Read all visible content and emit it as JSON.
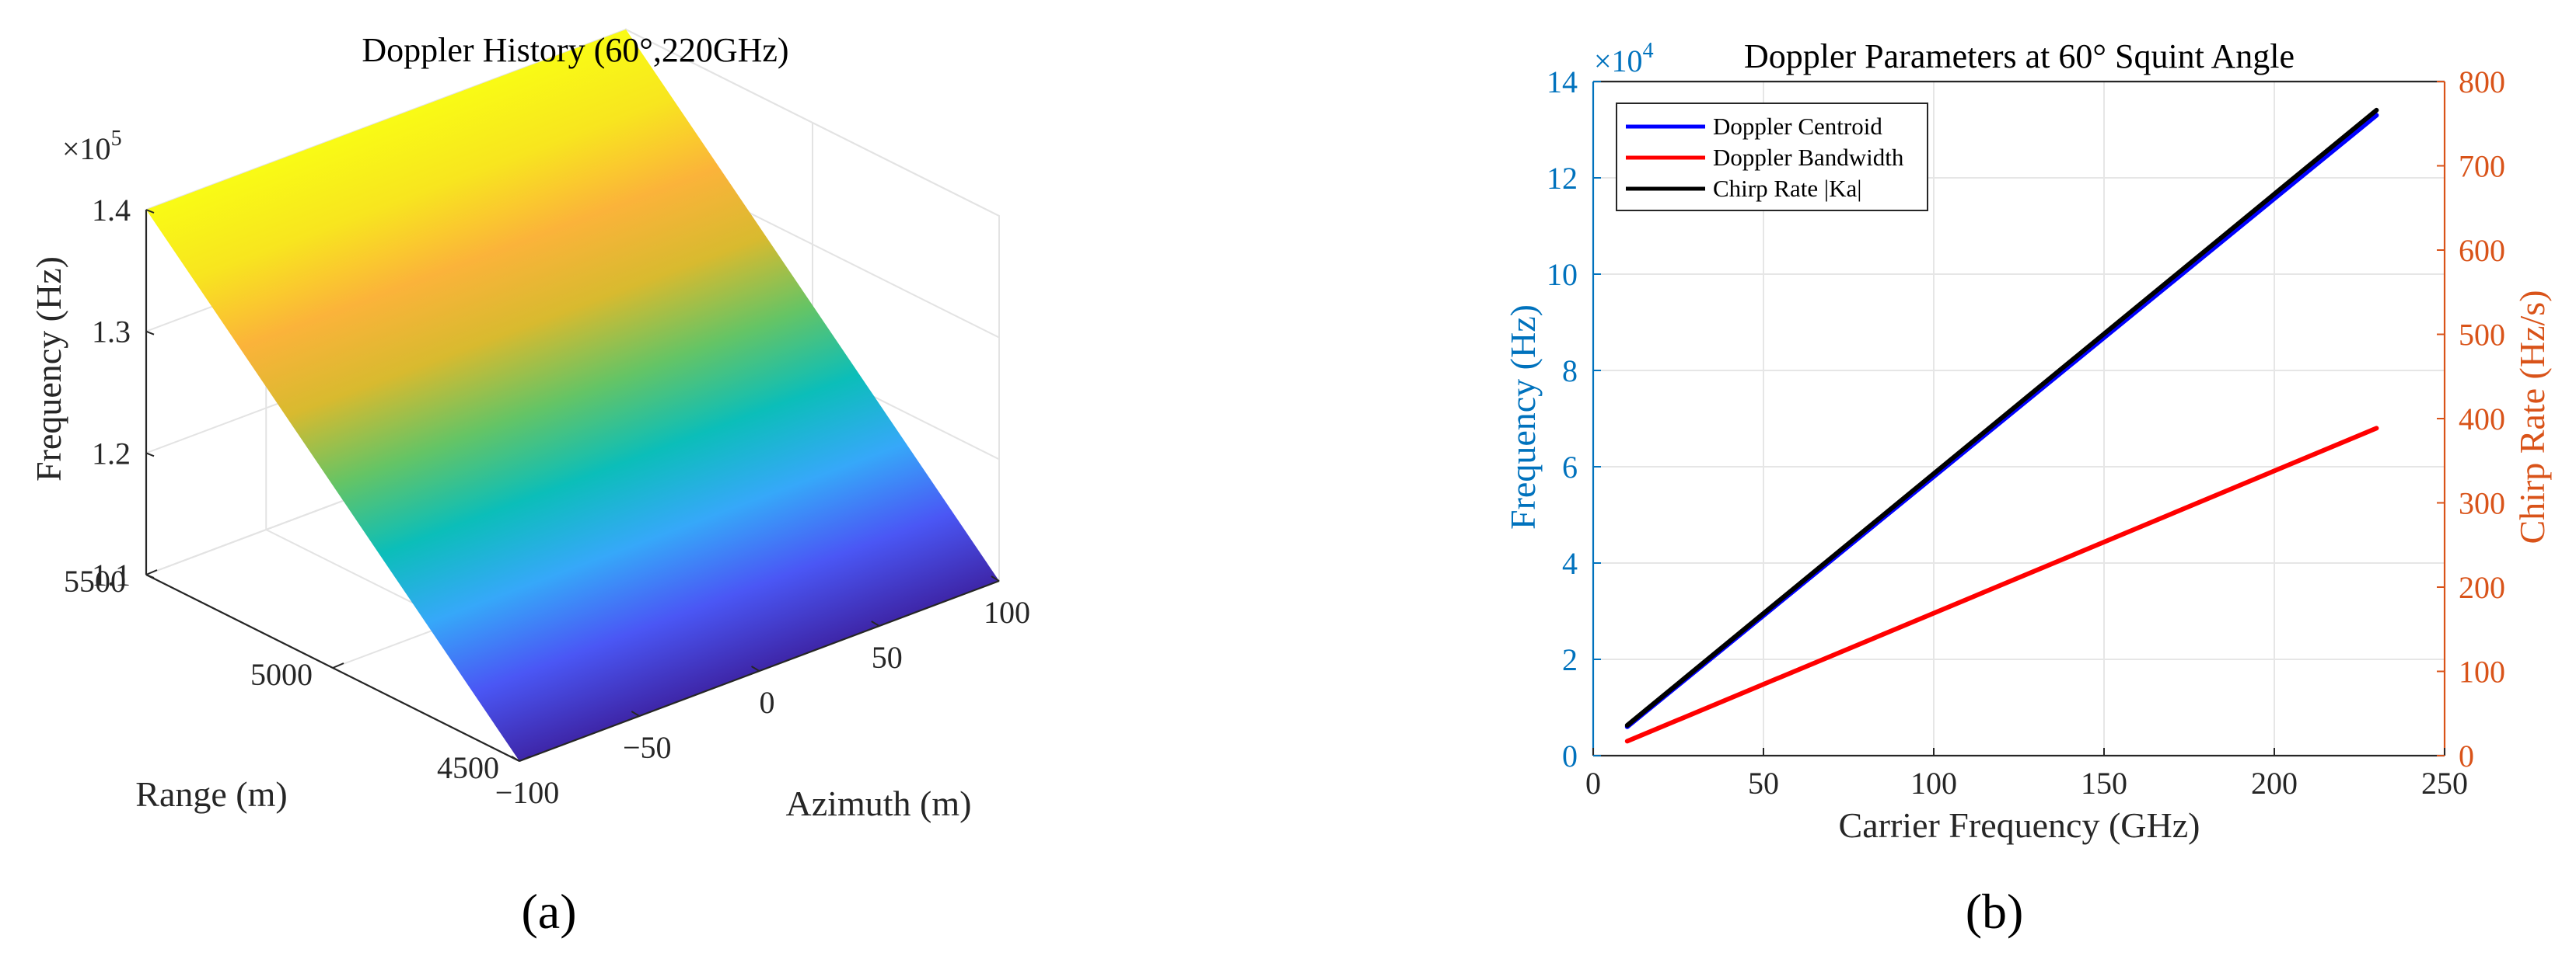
{
  "chart_data": [
    {
      "panel": "(a)",
      "type": "surface",
      "title": "Doppler History (60°,220GHz)",
      "zlabel": "Frequency (Hz)",
      "ylabel": "Range (m)",
      "xlabel": "Azimuth (m)",
      "z_exponent": "×10",
      "z_exponent_power": "5",
      "zlim": [
        1.1,
        1.4
      ],
      "z_ticks": [
        "1.1",
        "1.2",
        "1.3",
        "1.4"
      ],
      "range_ticks": [
        "4500",
        "5000",
        "5500"
      ],
      "azimuth_ticks": [
        "−100",
        "−50",
        "0",
        "50",
        "100"
      ],
      "colormap": [
        "#3E26A8",
        "#4A57F5",
        "#36A8F9",
        "#0BBEB9",
        "#65C465",
        "#D8BA2F",
        "#FBB33A",
        "#F8E51F",
        "#F9FB15"
      ],
      "surface": {
        "description": "planar surface; frequency decreases from ~1.40e5 Hz at range 5500 m to ~1.10e5 Hz at range 4500 m, nearly constant across azimuth",
        "corner_values": {
          "range_5500_az_-100": 1.4,
          "range_5500_az_100": 1.4,
          "range_4500_az_-100": 1.1,
          "range_4500_az_100": 1.1
        }
      }
    },
    {
      "panel": "(b)",
      "type": "line",
      "title": "Doppler Parameters at 60° Squint Angle",
      "xlabel": "Carrier Frequency (GHz)",
      "ylabel_left": "Frequency (Hz)",
      "ylabel_right": "Chirp Rate (Hz/s)",
      "left_exponent": "×10",
      "left_exponent_power": "4",
      "xlim": [
        0,
        250
      ],
      "ylim_left": [
        0,
        14
      ],
      "ylim_right": [
        0,
        800
      ],
      "x_ticks": [
        "0",
        "50",
        "100",
        "150",
        "200",
        "250"
      ],
      "left_ticks": [
        "0",
        "2",
        "4",
        "6",
        "8",
        "10",
        "12",
        "14"
      ],
      "right_ticks": [
        "0",
        "100",
        "200",
        "300",
        "400",
        "500",
        "600",
        "700",
        "800"
      ],
      "colors": {
        "left_axis": "#0072BD",
        "right_axis": "#D95319"
      },
      "series": [
        {
          "name": "Doppler Centroid",
          "color": "#0000FF",
          "axis": "left",
          "x": [
            10,
            230
          ],
          "y": [
            0.6,
            13.3
          ]
        },
        {
          "name": "Doppler Bandwidth",
          "color": "#FF0000",
          "axis": "left",
          "x": [
            10,
            230
          ],
          "y": [
            0.3,
            6.8
          ]
        },
        {
          "name": "Chirp Rate |Ka|",
          "color": "#000000",
          "axis": "right",
          "x": [
            10,
            230
          ],
          "y": [
            36,
            766
          ]
        }
      ],
      "legend": "top-left"
    }
  ],
  "labels": {
    "panel_a": "(a)",
    "panel_b": "(b)"
  }
}
